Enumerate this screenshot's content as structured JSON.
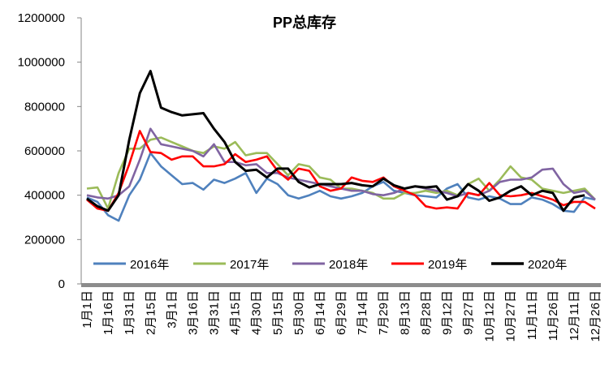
{
  "chart_data": {
    "type": "line",
    "title": "PP总库存",
    "categories": [
      "1月1日",
      null,
      "1月16日",
      null,
      "1月31日",
      null,
      "2月15日",
      null,
      "3月1日",
      null,
      "3月16日",
      null,
      "3月31日",
      null,
      "4月15日",
      null,
      "4月30日",
      null,
      "5月15日",
      null,
      "5月30日",
      null,
      "6月14日",
      null,
      "6月29日",
      null,
      "7月14日",
      null,
      "7月29日",
      null,
      "8月13日",
      null,
      "8月28日",
      null,
      "9月12日",
      null,
      "9月27日",
      null,
      "10月12日",
      null,
      "10月27日",
      null,
      "11月11日",
      null,
      "11月26日",
      null,
      "12月11日",
      null,
      "12月26日"
    ],
    "series": [
      {
        "name": "2016年",
        "color": "#4f81bd",
        "values": [
          390000,
          370000,
          310000,
          285000,
          400000,
          470000,
          590000,
          530000,
          490000,
          450000,
          455000,
          425000,
          470000,
          455000,
          475000,
          500000,
          410000,
          475000,
          450000,
          400000,
          385000,
          400000,
          420000,
          395000,
          385000,
          395000,
          410000,
          440000,
          460000,
          420000,
          410000,
          400000,
          395000,
          390000,
          430000,
          450000,
          390000,
          380000,
          395000,
          385000,
          360000,
          360000,
          390000,
          380000,
          360000,
          330000,
          325000,
          390000,
          380000
        ]
      },
      {
        "name": "2017年",
        "color": "#9bbb59",
        "values": [
          430000,
          435000,
          340000,
          500000,
          610000,
          610000,
          650000,
          660000,
          640000,
          620000,
          600000,
          590000,
          620000,
          610000,
          640000,
          580000,
          590000,
          590000,
          540000,
          490000,
          540000,
          530000,
          480000,
          470000,
          430000,
          430000,
          420000,
          410000,
          385000,
          385000,
          410000,
          410000,
          420000,
          410000,
          420000,
          400000,
          450000,
          475000,
          420000,
          470000,
          530000,
          480000,
          470000,
          430000,
          420000,
          410000,
          420000,
          430000,
          380000
        ]
      },
      {
        "name": "2018年",
        "color": "#8064a2",
        "values": [
          400000,
          390000,
          385000,
          400000,
          440000,
          560000,
          700000,
          630000,
          620000,
          610000,
          600000,
          575000,
          630000,
          550000,
          550000,
          535000,
          540000,
          500000,
          500000,
          480000,
          470000,
          460000,
          450000,
          440000,
          430000,
          420000,
          420000,
          405000,
          400000,
          410000,
          430000,
          440000,
          430000,
          420000,
          410000,
          395000,
          410000,
          400000,
          420000,
          460000,
          470000,
          470000,
          480000,
          515000,
          520000,
          450000,
          410000,
          420000,
          380000
        ]
      },
      {
        "name": "2019年",
        "color": "#ff0000",
        "values": [
          380000,
          340000,
          330000,
          410000,
          540000,
          690000,
          595000,
          590000,
          560000,
          575000,
          575000,
          530000,
          530000,
          540000,
          585000,
          550000,
          560000,
          575000,
          510000,
          470000,
          520000,
          510000,
          440000,
          420000,
          430000,
          480000,
          465000,
          460000,
          480000,
          440000,
          420000,
          400000,
          350000,
          340000,
          345000,
          340000,
          410000,
          400000,
          455000,
          400000,
          395000,
          400000,
          410000,
          395000,
          380000,
          355000,
          370000,
          370000,
          340000
        ]
      },
      {
        "name": "2020年",
        "color": "#000000",
        "values": [
          385000,
          350000,
          330000,
          400000,
          650000,
          860000,
          960000,
          795000,
          775000,
          760000,
          765000,
          770000,
          700000,
          640000,
          550000,
          510000,
          515000,
          480000,
          520000,
          520000,
          460000,
          435000,
          450000,
          450000,
          450000,
          455000,
          445000,
          440000,
          475000,
          445000,
          430000,
          440000,
          435000,
          440000,
          380000,
          395000,
          450000,
          420000,
          375000,
          390000,
          420000,
          440000,
          400000,
          420000,
          410000,
          330000,
          390000,
          400000,
          null
        ]
      }
    ],
    "ylim": [
      0,
      1200000
    ],
    "yticks": [
      0,
      200000,
      400000,
      600000,
      800000,
      1000000,
      1200000
    ],
    "grid": false,
    "legend": "bottom"
  }
}
